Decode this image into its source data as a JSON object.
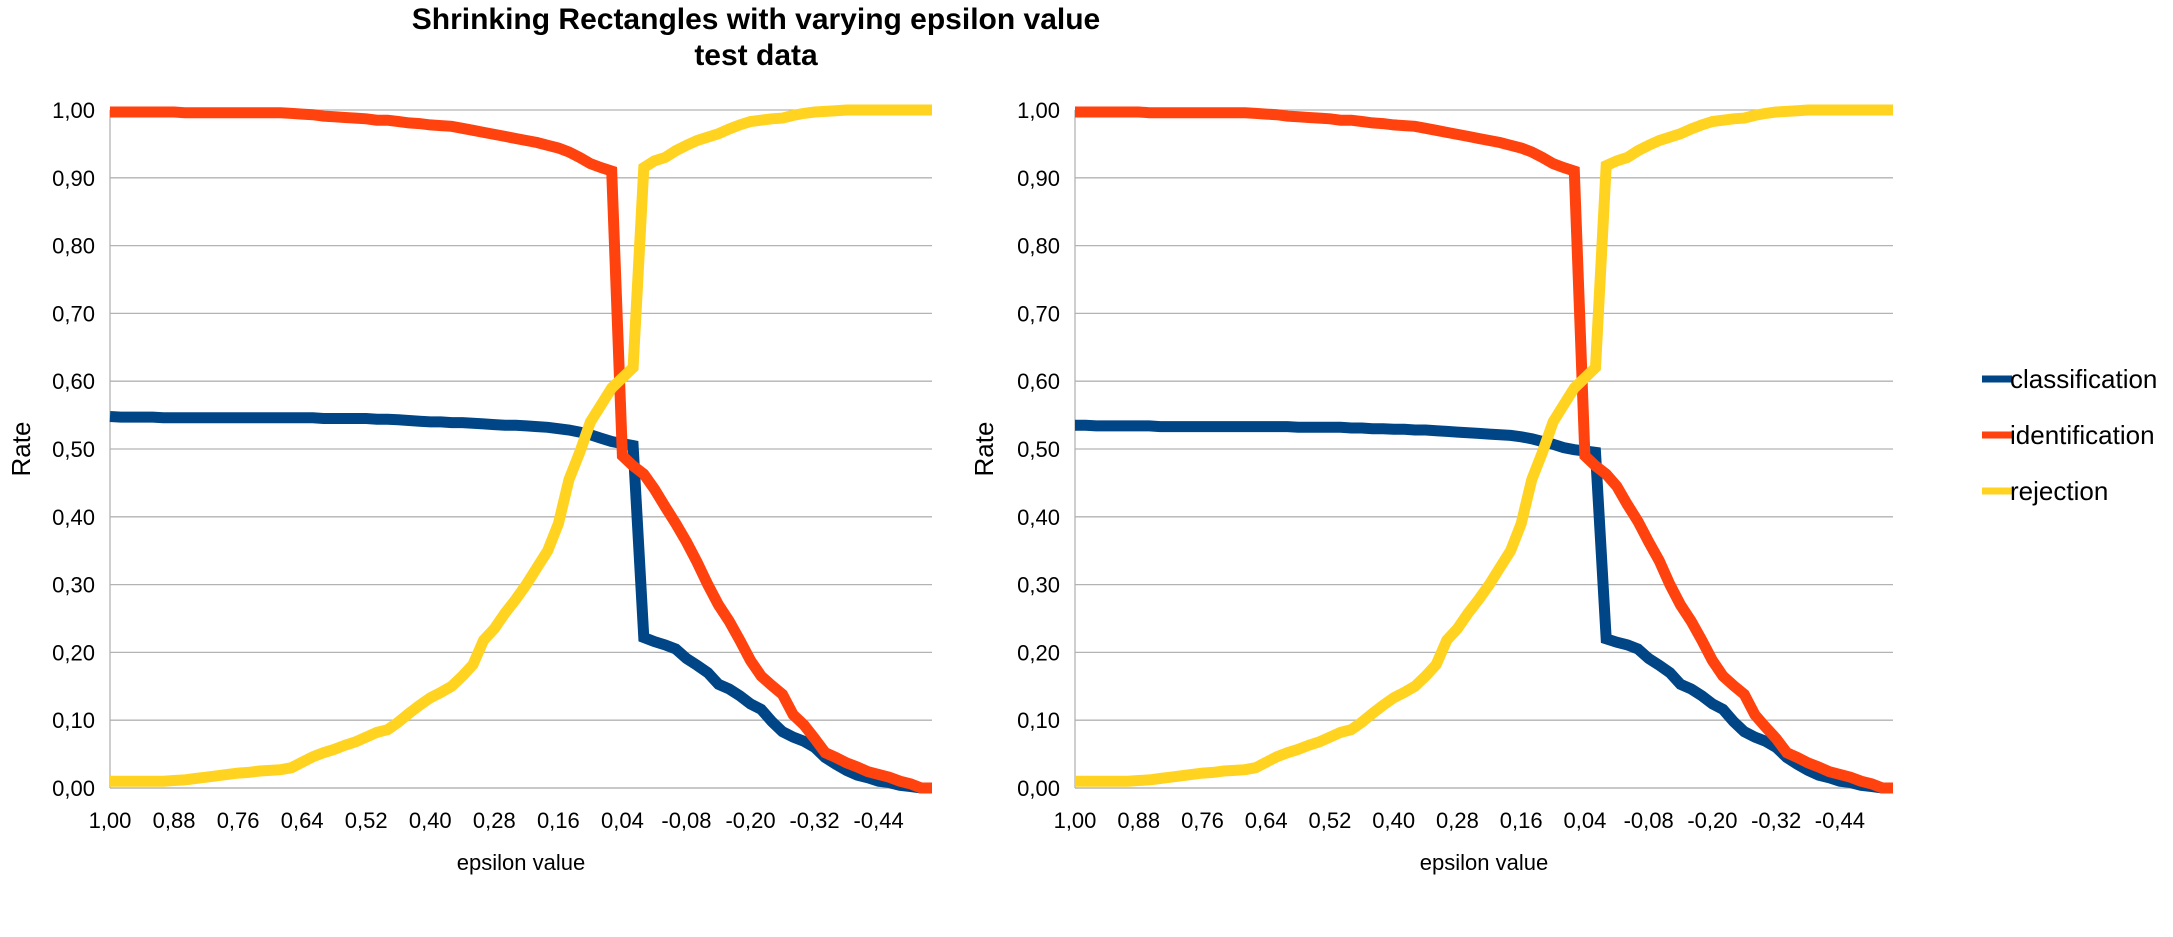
{
  "title": {
    "line1": "Shrinking Rectangles with varying epsilon value",
    "line2": "test data"
  },
  "legend_items": [
    {
      "name": "classification",
      "color": "#004586"
    },
    {
      "name": "identification",
      "color": "#ff420e"
    },
    {
      "name": "rejection",
      "color": "#ffd320"
    }
  ],
  "chart_data": [
    {
      "type": "line",
      "title": "",
      "xlabel": "epsilon value",
      "ylabel": "Rate",
      "ylim": [
        0,
        1
      ],
      "yticks": [
        "0,00",
        "0,10",
        "0,20",
        "0,30",
        "0,40",
        "0,50",
        "0,60",
        "0,70",
        "0,80",
        "0,90",
        "1,00"
      ],
      "x_tick_labels": [
        "1,00",
        "0,88",
        "0,76",
        "0,64",
        "0,52",
        "0,40",
        "0,28",
        "0,16",
        "0,04",
        "-0,08",
        "-0,20",
        "-0,32",
        "-0,44"
      ],
      "grid": true,
      "legend": "right",
      "x": [
        1.0,
        0.98,
        0.96,
        0.94,
        0.92,
        0.9,
        0.88,
        0.86,
        0.84,
        0.82,
        0.8,
        0.78,
        0.76,
        0.74,
        0.72,
        0.7,
        0.68,
        0.66,
        0.64,
        0.62,
        0.6,
        0.58,
        0.56,
        0.54,
        0.52,
        0.5,
        0.48,
        0.46,
        0.44,
        0.42,
        0.4,
        0.38,
        0.36,
        0.34,
        0.32,
        0.3,
        0.28,
        0.26,
        0.24,
        0.22,
        0.2,
        0.18,
        0.16,
        0.14,
        0.12,
        0.1,
        0.08,
        0.06,
        0.04,
        0.02,
        0.0,
        -0.02,
        -0.04,
        -0.06,
        -0.08,
        -0.1,
        -0.12,
        -0.14,
        -0.16,
        -0.18,
        -0.2,
        -0.22,
        -0.24,
        -0.26,
        -0.28,
        -0.3,
        -0.32,
        -0.34,
        -0.36,
        -0.38,
        -0.4,
        -0.42,
        -0.44,
        -0.46,
        -0.48,
        -0.5,
        -0.52,
        -0.54
      ],
      "series": [
        {
          "name": "classification",
          "color": "#004586",
          "values": [
            0.548,
            0.547,
            0.547,
            0.547,
            0.547,
            0.546,
            0.546,
            0.546,
            0.546,
            0.546,
            0.546,
            0.546,
            0.546,
            0.546,
            0.546,
            0.546,
            0.546,
            0.546,
            0.546,
            0.546,
            0.545,
            0.545,
            0.545,
            0.545,
            0.545,
            0.544,
            0.544,
            0.543,
            0.542,
            0.541,
            0.54,
            0.54,
            0.539,
            0.539,
            0.538,
            0.537,
            0.536,
            0.535,
            0.535,
            0.534,
            0.533,
            0.532,
            0.53,
            0.528,
            0.525,
            0.521,
            0.516,
            0.511,
            0.508,
            0.505,
            0.222,
            0.216,
            0.211,
            0.205,
            0.191,
            0.181,
            0.17,
            0.153,
            0.146,
            0.136,
            0.124,
            0.116,
            0.098,
            0.083,
            0.075,
            0.069,
            0.06,
            0.045,
            0.035,
            0.026,
            0.019,
            0.015,
            0.01,
            0.008,
            0.004,
            0.002,
            0.0,
            0.0
          ]
        },
        {
          "name": "identification",
          "color": "#ff420e",
          "values": [
            0.997,
            0.997,
            0.997,
            0.997,
            0.997,
            0.997,
            0.997,
            0.996,
            0.996,
            0.996,
            0.996,
            0.996,
            0.996,
            0.996,
            0.996,
            0.996,
            0.996,
            0.995,
            0.994,
            0.993,
            0.991,
            0.99,
            0.989,
            0.988,
            0.987,
            0.985,
            0.985,
            0.983,
            0.981,
            0.98,
            0.978,
            0.977,
            0.976,
            0.973,
            0.97,
            0.967,
            0.964,
            0.961,
            0.958,
            0.955,
            0.952,
            0.948,
            0.944,
            0.938,
            0.93,
            0.921,
            0.915,
            0.91,
            0.49,
            0.475,
            0.463,
            0.441,
            0.415,
            0.39,
            0.363,
            0.333,
            0.3,
            0.27,
            0.246,
            0.218,
            0.188,
            0.165,
            0.151,
            0.138,
            0.108,
            0.093,
            0.073,
            0.052,
            0.045,
            0.037,
            0.031,
            0.024,
            0.02,
            0.016,
            0.01,
            0.006,
            0.0,
            0.0
          ]
        },
        {
          "name": "rejection",
          "color": "#ffd320",
          "values": [
            0.01,
            0.01,
            0.01,
            0.01,
            0.01,
            0.01,
            0.011,
            0.012,
            0.014,
            0.016,
            0.018,
            0.02,
            0.022,
            0.023,
            0.025,
            0.026,
            0.027,
            0.03,
            0.038,
            0.046,
            0.052,
            0.057,
            0.063,
            0.068,
            0.075,
            0.082,
            0.086,
            0.097,
            0.11,
            0.122,
            0.133,
            0.141,
            0.15,
            0.165,
            0.182,
            0.218,
            0.235,
            0.258,
            0.278,
            0.3,
            0.325,
            0.35,
            0.39,
            0.455,
            0.495,
            0.54,
            0.565,
            0.59,
            0.605,
            0.62,
            0.915,
            0.925,
            0.93,
            0.94,
            0.948,
            0.955,
            0.96,
            0.965,
            0.972,
            0.978,
            0.983,
            0.985,
            0.987,
            0.988,
            0.992,
            0.995,
            0.997,
            0.998,
            0.999,
            1.0,
            1.0,
            1.0,
            1.0,
            1.0,
            1.0,
            1.0,
            1.0,
            1.0
          ]
        }
      ]
    },
    {
      "type": "line",
      "title": "",
      "xlabel": "epsilon value",
      "ylabel": "Rate",
      "ylim": [
        0,
        1
      ],
      "yticks": [
        "0,00",
        "0,10",
        "0,20",
        "0,30",
        "0,40",
        "0,50",
        "0,60",
        "0,70",
        "0,80",
        "0,90",
        "1,00"
      ],
      "x_tick_labels": [
        "1,00",
        "0,88",
        "0,76",
        "0,64",
        "0,52",
        "0,40",
        "0,28",
        "0,16",
        "0,04",
        "-0,08",
        "-0,20",
        "-0,32",
        "-0,44"
      ],
      "grid": true,
      "legend": "right",
      "x": [
        1.0,
        0.98,
        0.96,
        0.94,
        0.92,
        0.9,
        0.88,
        0.86,
        0.84,
        0.82,
        0.8,
        0.78,
        0.76,
        0.74,
        0.72,
        0.7,
        0.68,
        0.66,
        0.64,
        0.62,
        0.6,
        0.58,
        0.56,
        0.54,
        0.52,
        0.5,
        0.48,
        0.46,
        0.44,
        0.42,
        0.4,
        0.38,
        0.36,
        0.34,
        0.32,
        0.3,
        0.28,
        0.26,
        0.24,
        0.22,
        0.2,
        0.18,
        0.16,
        0.14,
        0.12,
        0.1,
        0.08,
        0.06,
        0.04,
        0.02,
        0.0,
        -0.02,
        -0.04,
        -0.06,
        -0.08,
        -0.1,
        -0.12,
        -0.14,
        -0.16,
        -0.18,
        -0.2,
        -0.22,
        -0.24,
        -0.26,
        -0.28,
        -0.3,
        -0.32,
        -0.34,
        -0.36,
        -0.38,
        -0.4,
        -0.42,
        -0.44,
        -0.46,
        -0.48,
        -0.5,
        -0.52,
        -0.54
      ],
      "series": [
        {
          "name": "classification",
          "color": "#004586",
          "values": [
            0.535,
            0.535,
            0.534,
            0.534,
            0.534,
            0.534,
            0.534,
            0.534,
            0.533,
            0.533,
            0.533,
            0.533,
            0.533,
            0.533,
            0.533,
            0.533,
            0.533,
            0.533,
            0.533,
            0.533,
            0.533,
            0.532,
            0.532,
            0.532,
            0.532,
            0.532,
            0.531,
            0.531,
            0.53,
            0.53,
            0.529,
            0.529,
            0.528,
            0.528,
            0.527,
            0.526,
            0.525,
            0.524,
            0.523,
            0.522,
            0.521,
            0.52,
            0.518,
            0.515,
            0.511,
            0.507,
            0.502,
            0.499,
            0.497,
            0.495,
            0.22,
            0.215,
            0.211,
            0.205,
            0.191,
            0.181,
            0.17,
            0.153,
            0.146,
            0.136,
            0.124,
            0.116,
            0.098,
            0.083,
            0.075,
            0.069,
            0.06,
            0.045,
            0.035,
            0.026,
            0.019,
            0.015,
            0.01,
            0.008,
            0.004,
            0.002,
            0.0,
            0.0
          ]
        },
        {
          "name": "identification",
          "color": "#ff420e",
          "values": [
            0.997,
            0.997,
            0.997,
            0.997,
            0.997,
            0.997,
            0.997,
            0.996,
            0.996,
            0.996,
            0.996,
            0.996,
            0.996,
            0.996,
            0.996,
            0.996,
            0.996,
            0.995,
            0.994,
            0.993,
            0.991,
            0.99,
            0.989,
            0.988,
            0.987,
            0.985,
            0.985,
            0.983,
            0.981,
            0.98,
            0.978,
            0.977,
            0.976,
            0.973,
            0.97,
            0.967,
            0.964,
            0.961,
            0.958,
            0.955,
            0.952,
            0.948,
            0.944,
            0.938,
            0.93,
            0.921,
            0.915,
            0.91,
            0.49,
            0.475,
            0.463,
            0.445,
            0.418,
            0.393,
            0.363,
            0.335,
            0.3,
            0.27,
            0.246,
            0.218,
            0.188,
            0.165,
            0.151,
            0.138,
            0.108,
            0.09,
            0.073,
            0.052,
            0.045,
            0.037,
            0.031,
            0.024,
            0.02,
            0.016,
            0.01,
            0.006,
            0.0,
            0.0
          ]
        },
        {
          "name": "rejection",
          "color": "#ffd320",
          "values": [
            0.01,
            0.01,
            0.01,
            0.01,
            0.01,
            0.01,
            0.011,
            0.012,
            0.014,
            0.016,
            0.018,
            0.02,
            0.022,
            0.023,
            0.025,
            0.026,
            0.027,
            0.03,
            0.038,
            0.046,
            0.052,
            0.057,
            0.063,
            0.068,
            0.075,
            0.082,
            0.086,
            0.097,
            0.11,
            0.122,
            0.133,
            0.141,
            0.15,
            0.165,
            0.182,
            0.218,
            0.235,
            0.258,
            0.278,
            0.3,
            0.325,
            0.35,
            0.39,
            0.455,
            0.495,
            0.54,
            0.565,
            0.59,
            0.605,
            0.62,
            0.918,
            0.925,
            0.93,
            0.94,
            0.948,
            0.955,
            0.96,
            0.965,
            0.972,
            0.978,
            0.983,
            0.985,
            0.987,
            0.988,
            0.992,
            0.995,
            0.997,
            0.998,
            0.999,
            1.0,
            1.0,
            1.0,
            1.0,
            1.0,
            1.0,
            1.0,
            1.0,
            1.0
          ]
        }
      ]
    }
  ]
}
